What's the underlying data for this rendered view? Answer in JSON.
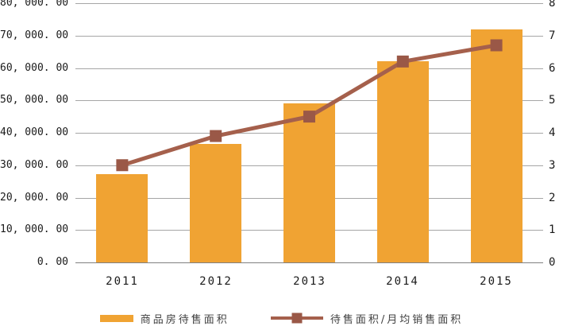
{
  "chart_data": {
    "type": "bar",
    "subtype": "bar+line-dual-axis",
    "title": "",
    "categories": [
      "2011",
      "2012",
      "2013",
      "2014",
      "2015"
    ],
    "series": [
      {
        "name": "商品房待售面积",
        "type": "bar",
        "axis": "left",
        "color": "#f0a333",
        "values": [
          27200,
          36500,
          49000,
          62000,
          71900
        ]
      },
      {
        "name": "待售面积/月均销售面积",
        "type": "line",
        "axis": "right",
        "color": "#a5604c",
        "marker": "square",
        "marker_color": "#9a5847",
        "values": [
          3.0,
          3.9,
          4.5,
          6.2,
          6.7
        ]
      }
    ],
    "left_axis": {
      "min": 0,
      "max": 80000,
      "step": 10000,
      "tick_labels": [
        "0. 00",
        "10, 000. 00",
        "20, 000. 00",
        "30, 000. 00",
        "40, 000. 00",
        "50, 000. 00",
        "60, 000. 00",
        "70, 000. 00",
        "80, 000. 00"
      ]
    },
    "right_axis": {
      "min": 0,
      "max": 8,
      "step": 1,
      "tick_labels": [
        "0",
        "1",
        "2",
        "3",
        "4",
        "5",
        "6",
        "7",
        "8"
      ]
    },
    "grid": true,
    "legend_position": "bottom",
    "colors": {
      "gridline": "#a6a6a6",
      "axis_line": "#808080",
      "text": "#1a1a1a",
      "background": "#ffffff"
    }
  },
  "legend": {
    "items": [
      {
        "label": "商品房待售面积"
      },
      {
        "label": "待售面积/月均销售面积"
      }
    ]
  }
}
